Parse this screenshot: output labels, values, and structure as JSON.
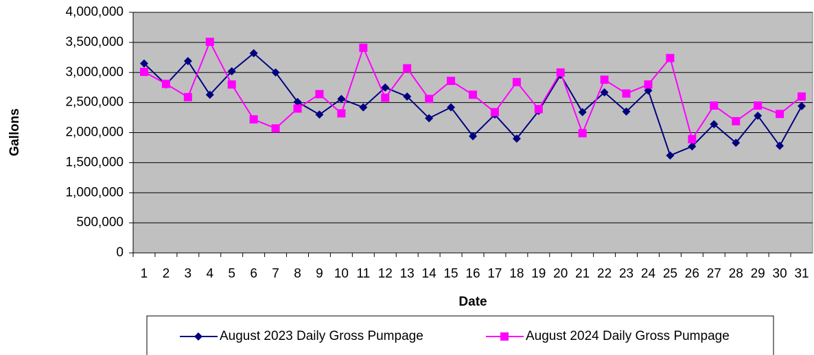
{
  "chart_data": {
    "type": "line",
    "x_label": "Date",
    "y_label": "Gallons",
    "categories": [
      "1",
      "2",
      "3",
      "4",
      "5",
      "6",
      "7",
      "8",
      "9",
      "10",
      "11",
      "12",
      "13",
      "14",
      "15",
      "16",
      "17",
      "18",
      "19",
      "20",
      "21",
      "22",
      "23",
      "24",
      "25",
      "26",
      "27",
      "28",
      "29",
      "30",
      "31"
    ],
    "series": [
      {
        "name": "August 2023 Daily Gross Pumpage",
        "color": "#000080",
        "marker": "diamond",
        "values": [
          3150000,
          2800000,
          3190000,
          2630000,
          3020000,
          3320000,
          3000000,
          2510000,
          2300000,
          2560000,
          2420000,
          2750000,
          2600000,
          2240000,
          2420000,
          1940000,
          2300000,
          1900000,
          2360000,
          2960000,
          2340000,
          2670000,
          2350000,
          2700000,
          1620000,
          1770000,
          2140000,
          1830000,
          2280000,
          1780000,
          2440000
        ]
      },
      {
        "name": "August 2024 Daily Gross Pumpage",
        "color": "#ff00ff",
        "marker": "square",
        "values": [
          3010000,
          2810000,
          2590000,
          3510000,
          2800000,
          2220000,
          2070000,
          2400000,
          2640000,
          2320000,
          3410000,
          2580000,
          3070000,
          2560000,
          2860000,
          2630000,
          2340000,
          2840000,
          2390000,
          3000000,
          1990000,
          2880000,
          2650000,
          2800000,
          3240000,
          1890000,
          2450000,
          2190000,
          2450000,
          2310000,
          2600000
        ]
      }
    ],
    "ylim": [
      0,
      4000000
    ],
    "yticks": [
      0,
      {
        "value": 500000,
        "label": "500,000"
      },
      {
        "value": 1000000,
        "label": "1,000,000"
      },
      {
        "value": 1500000,
        "label": "1,500,000"
      },
      {
        "value": 2000000,
        "label": "2,000,000"
      },
      {
        "value": 2500000,
        "label": "2,500,000"
      },
      {
        "value": 3000000,
        "label": "3,000,000"
      },
      {
        "value": 3500000,
        "label": "3,500,000"
      },
      {
        "value": 4000000,
        "label": "4,000,000"
      }
    ],
    "grid": true,
    "legend": "bottom",
    "plot_background": "#c0c0c0"
  }
}
